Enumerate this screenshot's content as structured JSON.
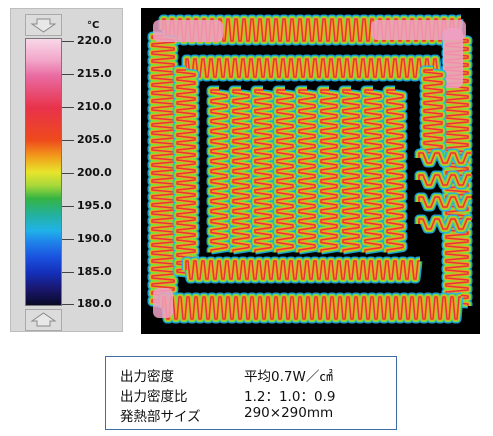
{
  "scale": {
    "unit": "°C",
    "labels": [
      "220.0",
      "215.0",
      "210.0",
      "205.0",
      "200.0",
      "195.0",
      "190.0",
      "185.0",
      "180.0"
    ]
  },
  "specs": {
    "rows": [
      {
        "label": "出力密度",
        "value": "平均0.7W／㎠"
      },
      {
        "label": "出力密度比",
        "value": "1.2：1.0：0.9"
      },
      {
        "label": "発熱部サイズ",
        "value": "290×290mm"
      }
    ]
  }
}
